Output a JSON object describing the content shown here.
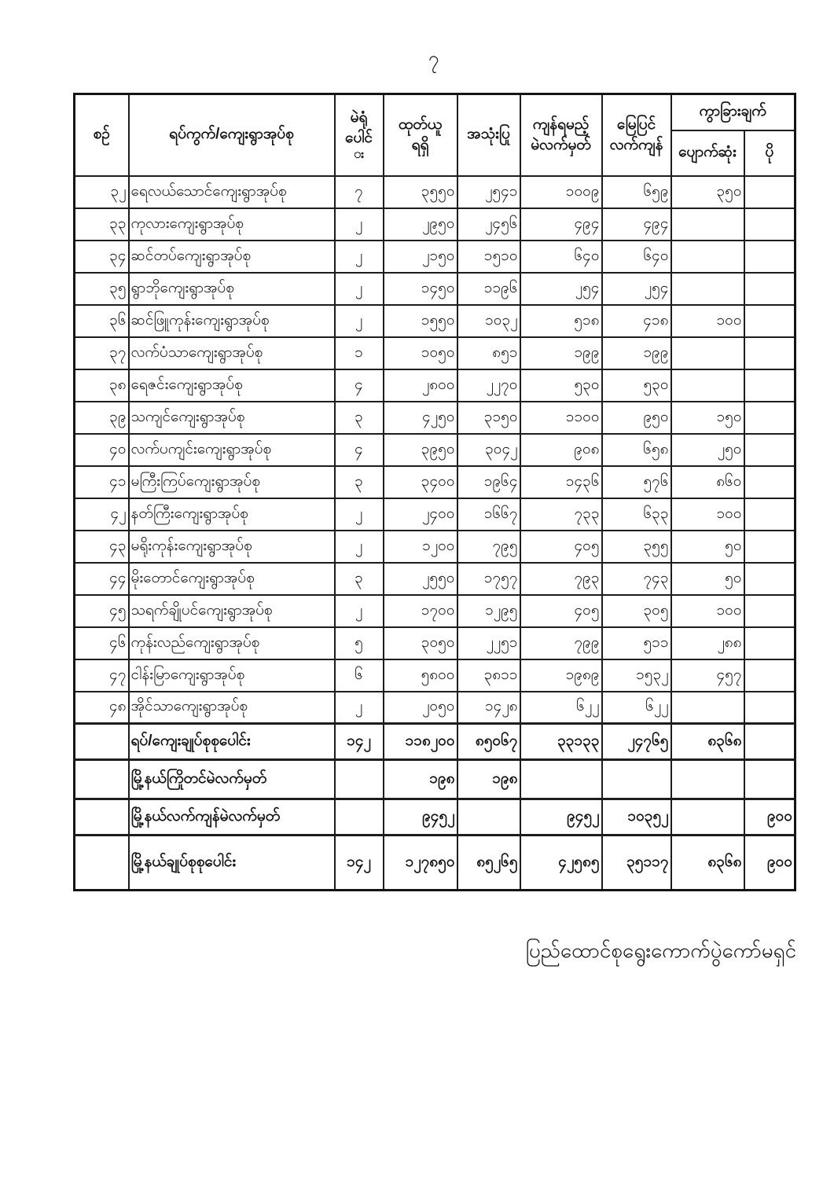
{
  "page": {
    "number": "၇",
    "footer": "ပြည်ထောင်စုရွေးကောက်ပွဲကော်မရှင်"
  },
  "table": {
    "header": {
      "no": "စဉ်",
      "name": "ရပ်ကွက်/ကျေးရွာအုပ်စု",
      "stations_l1": "မဲရုံ",
      "stations_l2": "ပေါင်",
      "stations_l3": "◌း",
      "issued_l1": "ထုတ်ယူ",
      "issued_l2": "ရရှိ",
      "used": "အသုံးပြု",
      "remaining_l1": "ကျန်ရမည့်",
      "remaining_l2": "မဲလက်မှတ်",
      "ground_l1": "မြေပြင်",
      "ground_l2": "လက်ကျန်",
      "difference": "ကွာခြားချက်",
      "missing": "ပျောက်ဆုံး",
      "extra": "ပို"
    },
    "rows": [
      {
        "no": "၃၂",
        "name": "ရေလယ်သောင်ကျေးရွာအုပ်စု",
        "stations": "၇",
        "issued": "၃၅၅၀",
        "used": "၂၅၄၁",
        "remaining": "၁၀၀၉",
        "ground": "၆၅၉",
        "missing": "၃၅၀",
        "extra": ""
      },
      {
        "no": "၃၃",
        "name": "ကုလားကျေးရွာအုပ်စု",
        "stations": "၂",
        "issued": "၂၉၅၀",
        "used": "၂၄၅၆",
        "remaining": "၄၉၄",
        "ground": "၄၉၄",
        "missing": "",
        "extra": ""
      },
      {
        "no": "၃၄",
        "name": "ဆင်တပ်ကျေးရွာအုပ်စု",
        "stations": "၂",
        "issued": "၂၁၅၀",
        "used": "၁၅၁၀",
        "remaining": "၆၄၀",
        "ground": "၆၄၀",
        "missing": "",
        "extra": ""
      },
      {
        "no": "၃၅",
        "name": "ရွာဘိုကျေးရွာအုပ်စု",
        "stations": "၂",
        "issued": "၁၄၅၀",
        "used": "၁၁၉၆",
        "remaining": "၂၅၄",
        "ground": "၂၅၄",
        "missing": "",
        "extra": ""
      },
      {
        "no": "၃၆",
        "name": "ဆင်ဖြူကုန်းကျေးရွာအုပ်စု",
        "stations": "၂",
        "issued": "၁၅၅၀",
        "used": "၁၀၃၂",
        "remaining": "၅၁၈",
        "ground": "၄၁၈",
        "missing": "၁၀၀",
        "extra": ""
      },
      {
        "no": "၃၇",
        "name": "လက်ပံသာကျေးရွာအုပ်စု",
        "stations": "၁",
        "issued": "၁၀၅၀",
        "used": "၈၅၁",
        "remaining": "၁၉၉",
        "ground": "၁၉၉",
        "missing": "",
        "extra": ""
      },
      {
        "no": "၃၈",
        "name": "ရေဇင်းကျေးရွာအုပ်စု",
        "stations": "၄",
        "issued": "၂၈၀၀",
        "used": "၂၂၇၀",
        "remaining": "၅၃၀",
        "ground": "၅၃၀",
        "missing": "",
        "extra": ""
      },
      {
        "no": "၃၉",
        "name": "သကျင်ကျေးရွာအုပ်စု",
        "stations": "၃",
        "issued": "၄၂၅၀",
        "used": "၃၁၅၀",
        "remaining": "၁၁၀၀",
        "ground": "၉၅၀",
        "missing": "၁၅၀",
        "extra": ""
      },
      {
        "no": "၄၀",
        "name": "လက်ပကျင်းကျေးရွာအုပ်စု",
        "stations": "၄",
        "issued": "၃၉၅၀",
        "used": "၃၀၄၂",
        "remaining": "၉၀၈",
        "ground": "၆၅၈",
        "missing": "၂၅၀",
        "extra": ""
      },
      {
        "no": "၄၁",
        "name": "မကြီးကြပ်ကျေးရွာအုပ်စု",
        "stations": "၃",
        "issued": "၃၄၀၀",
        "used": "၁၉၆၄",
        "remaining": "၁၄၃၆",
        "ground": "၅၇၆",
        "missing": "၈၆၀",
        "extra": ""
      },
      {
        "no": "၄၂",
        "name": "နတ်ကြီးကျေးရွာအုပ်စု",
        "stations": "၂",
        "issued": "၂၄၀၀",
        "used": "၁၆၆၇",
        "remaining": "၇၃၃",
        "ground": "၆၃၃",
        "missing": "၁၀၀",
        "extra": ""
      },
      {
        "no": "၄၃",
        "name": "မရိုးကုန်းကျေးရွာအုပ်စု",
        "stations": "၂",
        "issued": "၁၂၀၀",
        "used": "၇၉၅",
        "remaining": "၄၀၅",
        "ground": "၃၅၅",
        "missing": "၅၀",
        "extra": ""
      },
      {
        "no": "၄၄",
        "name": "မိုးတောင်ကျေးရွာအုပ်စု",
        "stations": "၃",
        "issued": "၂၅၅၀",
        "used": "၁၇၅၇",
        "remaining": "၇၉၃",
        "ground": "၇၄၃",
        "missing": "၅၀",
        "extra": ""
      },
      {
        "no": "၄၅",
        "name": "သရက်ချိုပင်ကျေးရွာအုပ်စု",
        "stations": "၂",
        "issued": "၁၇၀၀",
        "used": "၁၂၉၅",
        "remaining": "၄၀၅",
        "ground": "၃၀၅",
        "missing": "၁၀၀",
        "extra": ""
      },
      {
        "no": "၄၆",
        "name": "ကုန်းလည်ကျေးရွာအုပ်စု",
        "stations": "၅",
        "issued": "၃၀၅၀",
        "used": "၂၂၅၁",
        "remaining": "၇၉၉",
        "ground": "၅၁၁",
        "missing": "၂၈၈",
        "extra": ""
      },
      {
        "no": "၄၇",
        "name": "ငါန်းမြာကျေးရွာအုပ်စု",
        "stations": "၆",
        "issued": "၅၈၀၀",
        "used": "၃၈၁၁",
        "remaining": "၁၉၈၉",
        "ground": "၁၅၃၂",
        "missing": "၄၅၇",
        "extra": ""
      },
      {
        "no": "၄၈",
        "name": "အိုင်သာကျေးရွာအုပ်စု",
        "stations": "၂",
        "issued": "၂၀၅၀",
        "used": "၁၄၂၈",
        "remaining": "၆၂၂",
        "ground": "၆၂၂",
        "missing": "",
        "extra": ""
      }
    ],
    "summary_rows": [
      {
        "label": "ရပ်/ကျေးချုပ်စုစုပေါင်း",
        "stations": "၁၄၂",
        "issued": "၁၁၈၂၀၀",
        "used": "၈၅၀၆၇",
        "remaining": "၃၃၁၃၃",
        "ground": "၂၄၇၆၅",
        "missing": "၈၃၆၈",
        "extra": ""
      },
      {
        "label": "မြို့နယ်ကြိုတင်မဲလက်မှတ်",
        "stations": "",
        "issued": "၁၉၈",
        "used": "၁၉၈",
        "remaining": "",
        "ground": "",
        "missing": "",
        "extra": ""
      },
      {
        "label": "မြို့နယ်လက်ကျန်မဲလက်မှတ်",
        "stations": "",
        "issued": "၉၄၅၂",
        "used": "",
        "remaining": "၉၄၅၂",
        "ground": "၁၀၃၅၂",
        "missing": "",
        "extra": "၉၀၀"
      },
      {
        "label": "မြို့နယ်ချုပ်စုစုပေါင်း",
        "stations": "၁၄၂",
        "issued": "၁၂၇၈၅၀",
        "used": "၈၅၂၆၅",
        "remaining": "၄၂၅၈၅",
        "ground": "၃၅၁၁၇",
        "missing": "၈၃၆၈",
        "extra": "၉၀၀"
      }
    ]
  }
}
